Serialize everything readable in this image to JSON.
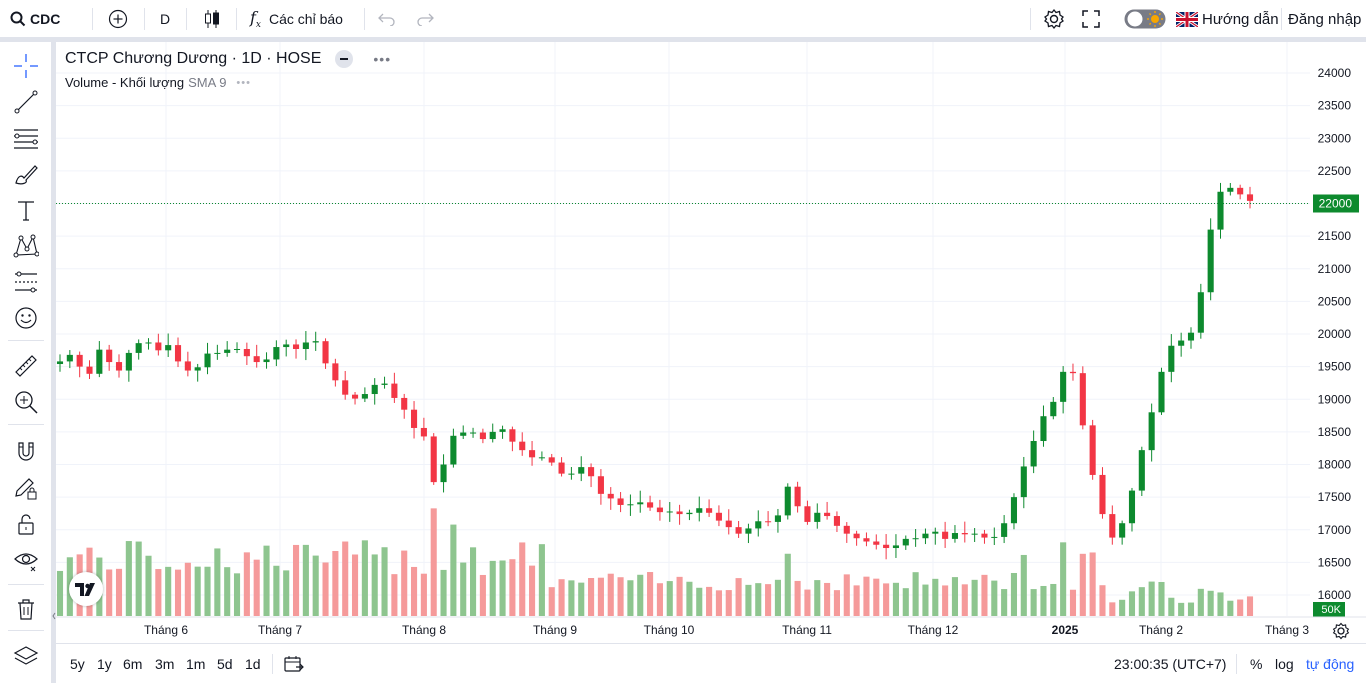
{
  "toolbar": {
    "symbol": "CDC",
    "interval": "D",
    "indicators_label": "Các chỉ báo",
    "guide_label": "Hướng dẫn",
    "login_label": "Đăng nhập"
  },
  "legend": {
    "title": "CTCP Chương Dương · 1D · HOSE",
    "volume_label": "Volume - Khối lượng",
    "volume_sma": "SMA 9"
  },
  "bottom": {
    "ranges": [
      "5y",
      "1y",
      "6m",
      "3m",
      "1m",
      "5d",
      "1d"
    ],
    "time": "23:00:35 (UTC+7)",
    "percent_label": "%",
    "log_label": "log",
    "auto_label": "tự động"
  },
  "colors": {
    "up": "#089981",
    "up_candle": "#0d8a2e",
    "down": "#f23645",
    "vol_up": "#8ec58f",
    "vol_down": "#f59a9a",
    "price_line": "#0d8a2e",
    "grid": "#f0f3fa"
  },
  "chart_data": {
    "type": "candlestick",
    "price_axis": {
      "min": 15800,
      "max": 24100,
      "ticks": [
        16000,
        16500,
        17000,
        17500,
        18000,
        18500,
        19000,
        19500,
        20000,
        20500,
        21000,
        21500,
        22000,
        22500,
        23000,
        23500,
        24000
      ]
    },
    "time_labels": [
      "Tháng 6",
      "Tháng 7",
      "Tháng 8",
      "Tháng 9",
      "Tháng 10",
      "Tháng 11",
      "Tháng 12",
      "2025",
      "Tháng 2",
      "Tháng 3"
    ],
    "last_price": 22000,
    "last_price_label": "22000",
    "volume_axis_label": "50K",
    "segments": [
      [
        19700,
        19500,
        19800,
        19300,
        19450
      ],
      [
        19550,
        19900,
        19350,
        19500,
        19850
      ],
      [
        19800,
        19900,
        19850
      ],
      [
        19900,
        19650,
        19950
      ],
      [
        19700,
        19500,
        19400,
        19550
      ],
      [
        19550,
        19800,
        19650
      ],
      [
        19700,
        19800,
        19750
      ],
      [
        19750,
        19600,
        19550,
        19650
      ],
      [
        19650,
        19900,
        19800,
        19750
      ],
      [
        19750,
        19950,
        19850
      ],
      [
        19850,
        19350,
        19250
      ],
      [
        19250,
        18950,
        19050,
        19100
      ],
      [
        19100,
        19300,
        19200
      ],
      [
        19200,
        18900,
        18800
      ],
      [
        18800,
        18400,
        18450,
        17250
      ],
      [
        17250,
        18500,
        18400,
        18550,
        18450
      ],
      [
        18450,
        18350,
        18600,
        18500
      ],
      [
        18500,
        18250,
        18200,
        18050,
        18150
      ],
      [
        18150,
        17950,
        17800
      ],
      [
        17800,
        17900,
        18000,
        17700
      ],
      [
        17700,
        17450,
        17500,
        17300
      ],
      [
        17300,
        17450,
        17400,
        17300
      ],
      [
        17300,
        17250,
        17300,
        17200
      ],
      [
        17200,
        17300,
        17350,
        17200
      ],
      [
        17200,
        17100,
        17000
      ],
      [
        17000,
        16900,
        17100,
        17150
      ],
      [
        17150,
        17100,
        17300
      ],
      [
        17300,
        17900,
        17000
      ],
      [
        17000,
        17200,
        17300,
        17150
      ],
      [
        17150,
        17000,
        16900,
        16850,
        16800,
        16750
      ],
      [
        16750,
        16700,
        16800,
        16900
      ],
      [
        16900,
        16850,
        17000,
        16950,
        16800
      ],
      [
        16800,
        17050,
        16850
      ],
      [
        16850,
        17000
      ],
      [
        17000,
        16800
      ],
      [
        16800,
        16950,
        17200
      ],
      [
        17200,
        17700,
        18150,
        18500
      ],
      [
        18500,
        18900,
        19000,
        19700
      ],
      [
        19700,
        19200
      ],
      [
        19200,
        18200
      ],
      [
        18200,
        17600,
        17000
      ],
      [
        17000,
        16800,
        17300
      ],
      [
        17300,
        17800
      ],
      [
        17800,
        18500,
        19000
      ],
      [
        19000,
        19700,
        19900
      ],
      [
        19900,
        19900,
        20100,
        21000
      ],
      [
        21000,
        22000,
        22300,
        22200,
        22100
      ],
      [
        22100,
        22000
      ]
    ]
  }
}
